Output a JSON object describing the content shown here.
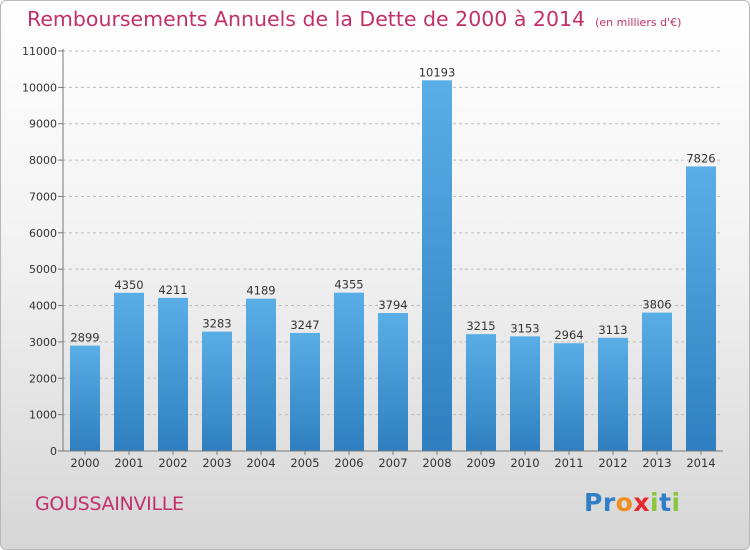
{
  "header": {
    "title": "Remboursements Annuels de la Dette de 2000 à 2014",
    "unit": "(en milliers d'€)"
  },
  "footer": {
    "place": "GOUSSAINVILLE",
    "brand": "Proxiti",
    "brand_letters": [
      {
        "ch": "P",
        "color": "#2f7fc8"
      },
      {
        "ch": "r",
        "color": "#2f7fc8"
      },
      {
        "ch": "o",
        "color": "#f28c1e"
      },
      {
        "ch": "x",
        "color": "#e8282e"
      },
      {
        "ch": "i",
        "color": "#8cc63f"
      },
      {
        "ch": "t",
        "color": "#2f7fc8"
      },
      {
        "ch": "i",
        "color": "#8cc63f"
      }
    ]
  },
  "colors": {
    "title": "#c2306a",
    "bar_top": "#5aaee6",
    "bar_bottom": "#2f7fc0",
    "grid": "#bdbdbd"
  },
  "chart_data": {
    "type": "bar",
    "title": "Remboursements Annuels de la Dette de 2000 à 2014",
    "categories": [
      "2000",
      "2001",
      "2002",
      "2003",
      "2004",
      "2005",
      "2006",
      "2007",
      "2008",
      "2009",
      "2010",
      "2011",
      "2012",
      "2013",
      "2014"
    ],
    "values": [
      2899,
      4350,
      4211,
      3283,
      4189,
      3247,
      4355,
      3794,
      10193,
      3215,
      3153,
      2964,
      3113,
      3806,
      7826
    ],
    "ylim": [
      0,
      11000
    ],
    "yticks": [
      0,
      1000,
      2000,
      3000,
      4000,
      5000,
      6000,
      7000,
      8000,
      9000,
      10000,
      11000
    ],
    "grid": true,
    "data_labels": true
  }
}
